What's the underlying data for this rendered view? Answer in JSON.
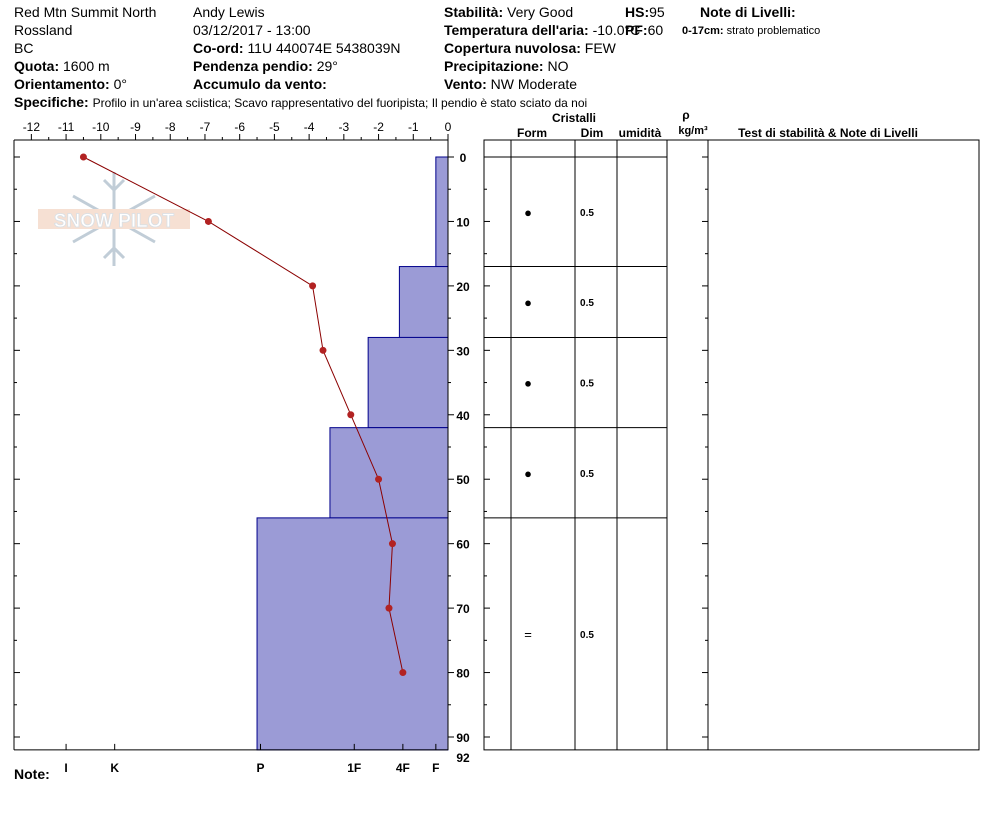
{
  "header": {
    "location": "Red Mtn Summit North",
    "region": "Rossland",
    "state": "BC",
    "elevation_label": "Quota:",
    "elevation_value": "1600 m",
    "aspect_label": "Orientamento:",
    "aspect_value": "0°",
    "observer": "Andy Lewis",
    "datetime": "03/12/2017 - 13:00",
    "coord_label": "Co-ord:",
    "coord_value": "11U 440074E 5438039N",
    "slope_label": "Pendenza pendio:",
    "slope_value": "29°",
    "wind_loading_label": "Accumulo da vento:",
    "wind_loading_value": "",
    "stability_label": "Stabilità:",
    "stability_value": "Very Good",
    "air_temp_label": "Temperatura dell'aria:",
    "air_temp_value": "-10.0°C",
    "sky_label": "Copertura nuvolosa:",
    "sky_value": "FEW",
    "precip_label": "Precipitazione:",
    "precip_value": "NO",
    "wind_label": "Vento:",
    "wind_value": "NW Moderate",
    "hs_label": "HS:",
    "hs_value": "95",
    "pf_label": "PF:",
    "pf_value": "60",
    "layer_notes_label": "Note di Livelli:",
    "layer_notes_range": "0-17cm:",
    "layer_notes_text": "strato problematico",
    "specifics_label": "Specifiche:",
    "specifics_text": "Profilo in un'area sciistica; Scavo rappresentativo del fuoripista; Il pendio è stato sciato da noi",
    "notes_label": "Note:"
  },
  "watermark": "SNOW PILOT",
  "table_headers": {
    "crystals": "Cristalli",
    "form": "Form",
    "size": "Dim",
    "moisture": "umidità",
    "rho": "ρ",
    "density_unit": "kg/m³",
    "stability_notes": "Test di stabilità & Note di Livelli"
  },
  "colors": {
    "hardness_fill": "#9b9bd6",
    "hardness_stroke": "#00008b",
    "temp_line": "#8b0000",
    "temp_point": "#b22222"
  },
  "chart_data": {
    "type": "snow-profile",
    "temperature_axis": {
      "ticks": [
        -12,
        -11,
        -10,
        -9,
        -8,
        -7,
        -6,
        -5,
        -4,
        -3,
        -2,
        -1,
        0
      ],
      "tick_labels": [
        "-12",
        "-11",
        "-10",
        "-9",
        "-8",
        "-7",
        "-6",
        "-5",
        "-4",
        "-3",
        "-2",
        "-1",
        "0"
      ],
      "range": [
        -12.5,
        0
      ]
    },
    "depth_axis": {
      "ticks": [
        0,
        10,
        20,
        30,
        40,
        50,
        60,
        70,
        80,
        90
      ],
      "tick_labels": [
        "0",
        "10",
        "20",
        "30",
        "40",
        "50",
        "60",
        "70",
        "80",
        "90"
      ],
      "max": 92,
      "max_label": "92"
    },
    "hardness_axis": {
      "labels": [
        {
          "label": "I",
          "temp": -11
        },
        {
          "label": "K",
          "temp": -9.6
        },
        {
          "label": "P",
          "temp": -5.4
        },
        {
          "label": "1F",
          "temp": -2.7
        },
        {
          "label": "4F",
          "temp": -1.3
        },
        {
          "label": "F",
          "temp": -0.35
        }
      ]
    },
    "temperature_profile": [
      {
        "depth": 0,
        "temp": -10.5
      },
      {
        "depth": 10,
        "temp": -6.9
      },
      {
        "depth": 20,
        "temp": -3.9
      },
      {
        "depth": 30,
        "temp": -3.6
      },
      {
        "depth": 40,
        "temp": -2.8
      },
      {
        "depth": 50,
        "temp": -2.0
      },
      {
        "depth": 60,
        "temp": -1.6
      },
      {
        "depth": 70,
        "temp": -1.7
      },
      {
        "depth": 80,
        "temp": -1.3
      }
    ],
    "layers": [
      {
        "top": 0,
        "bottom": 17,
        "hardness_temp": -0.35,
        "form_symbol": "●",
        "size": "0.5"
      },
      {
        "top": 17,
        "bottom": 28,
        "hardness_temp": -1.4,
        "form_symbol": "●",
        "size": "0.5"
      },
      {
        "top": 28,
        "bottom": 42,
        "hardness_temp": -2.3,
        "form_symbol": "●",
        "size": "0.5"
      },
      {
        "top": 42,
        "bottom": 56,
        "hardness_temp": -3.4,
        "form_symbol": "●",
        "size": "0.5"
      },
      {
        "top": 56,
        "bottom": 92,
        "hardness_temp": -5.5,
        "form_symbol": "=",
        "size": "0.5"
      }
    ]
  }
}
